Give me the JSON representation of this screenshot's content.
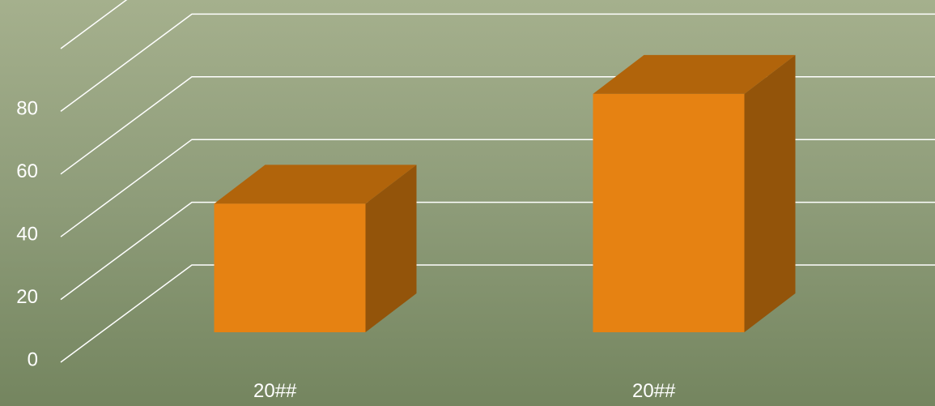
{
  "chart_data": {
    "type": "bar",
    "style": "3d-column",
    "categories": [
      "20##",
      "20##"
    ],
    "values": [
      41,
      76
    ],
    "y_ticks": [
      0,
      20,
      40,
      60,
      80
    ],
    "ylim": [
      0,
      100
    ],
    "grid": true,
    "colors": {
      "bar_front": "#e68212",
      "bar_top": "#b1640b",
      "bar_side": "#93540a",
      "grid": "#ffffff",
      "text": "#ffffff"
    }
  }
}
